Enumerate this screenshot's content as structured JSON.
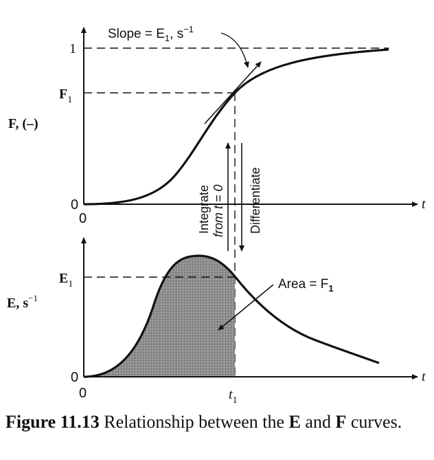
{
  "top_plot": {
    "y_axis_label": "F, (–)",
    "tick_one": "1",
    "tick_F1": "F",
    "tick_F1_sub": "1",
    "origin_y": "0",
    "origin_x": "0",
    "x_axis_label": "t",
    "slope_label": "Slope = E",
    "slope_sub": "1",
    "slope_units": ", s",
    "slope_exp": "−1"
  },
  "middle": {
    "integrate_line1": "Integrate",
    "integrate_line2": "from t = 0",
    "differentiate": "Differentiate"
  },
  "bottom_plot": {
    "y_axis_label": "E, s",
    "y_axis_exp": "−1",
    "tick_E1": "E",
    "tick_E1_sub": "1",
    "origin_y": "0",
    "origin_x": "0",
    "x_axis_label": "t",
    "t1_label": "t",
    "t1_sub": "1",
    "area_label": "Area = F",
    "area_sub": "1"
  },
  "caption": {
    "figure_number": "Figure 11.13",
    "text_before": " Relationship between the ",
    "E": "E",
    "text_mid": " and ",
    "F": "F",
    "text_end": " curves."
  }
}
